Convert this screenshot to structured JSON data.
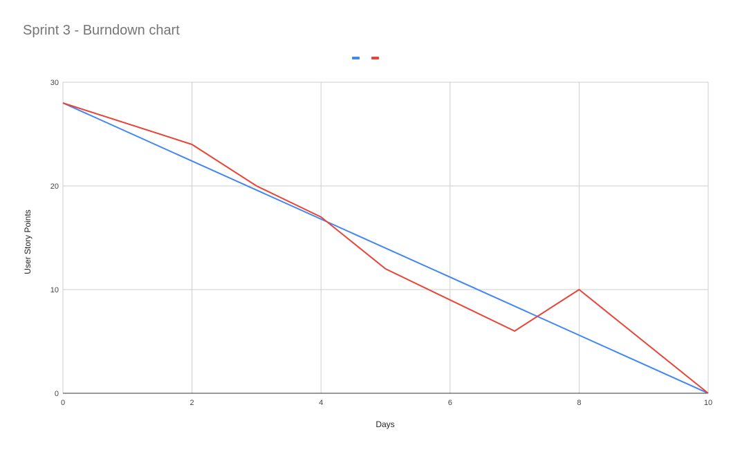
{
  "chart_data": {
    "type": "line",
    "title": "Sprint 3 - Burndown chart",
    "xlabel": "Days",
    "ylabel": "User Story Points",
    "xlim": [
      0,
      10
    ],
    "ylim": [
      0,
      30
    ],
    "x_ticks": [
      "0",
      "2",
      "4",
      "6",
      "8",
      "10"
    ],
    "y_ticks": [
      "0",
      "10",
      "20",
      "30"
    ],
    "grid": true,
    "legend_position": "top",
    "series": [
      {
        "color": "#4285f4",
        "points": [
          [
            0,
            28
          ],
          [
            10,
            0
          ]
        ]
      },
      {
        "color": "#ea4335",
        "points": [
          [
            0,
            28
          ],
          [
            2,
            24
          ],
          [
            3,
            20
          ],
          [
            4,
            17
          ],
          [
            5,
            12
          ],
          [
            7,
            6
          ],
          [
            8,
            10
          ],
          [
            10,
            0
          ]
        ]
      }
    ]
  }
}
